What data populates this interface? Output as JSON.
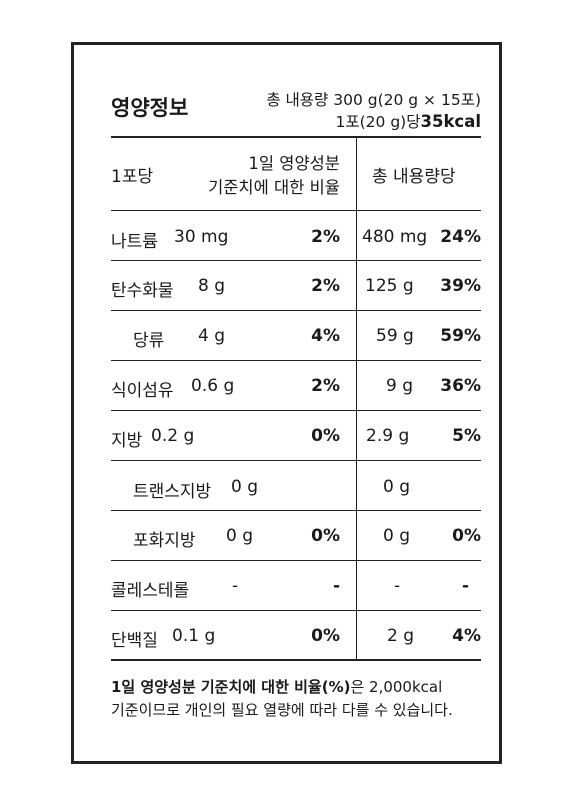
{
  "header": {
    "title": "영양정보",
    "total_content": "총 내용량 300 g(20 g × 15포)",
    "per_serving_prefix": "1포(20 g)당",
    "kcal": "35kcal"
  },
  "table_header": {
    "per_serving": "1포당",
    "daily_value_line1": "1일 영양성분",
    "daily_value_line2": "기준치에 대한 비율",
    "total": "총 내용량당"
  },
  "rows": [
    {
      "name": "나트륨",
      "amount": "30 mg",
      "pct": "2%",
      "total_amount": "480 mg",
      "total_pct": "24%"
    },
    {
      "name": "탄수화물",
      "amount": "8 g",
      "pct": "2%",
      "total_amount": "125 g",
      "total_pct": "39%"
    },
    {
      "name": "당류",
      "amount": "4 g",
      "pct": "4%",
      "total_amount": "59 g",
      "total_pct": "59%"
    },
    {
      "name": "식이섬유",
      "amount": "0.6 g",
      "pct": "2%",
      "total_amount": "9 g",
      "total_pct": "36%"
    },
    {
      "name": "지방",
      "amount": "0.2 g",
      "pct": "0%",
      "total_amount": "2.9 g",
      "total_pct": "5%"
    },
    {
      "name": "트랜스지방",
      "amount": "0 g",
      "pct": "",
      "total_amount": "0 g",
      "total_pct": ""
    },
    {
      "name": "포화지방",
      "amount": "0 g",
      "pct": "0%",
      "total_amount": "0 g",
      "total_pct": "0%"
    },
    {
      "name": "콜레스테롤",
      "amount": "-",
      "pct": "-",
      "total_amount": "-",
      "total_pct": "-"
    },
    {
      "name": "단백질",
      "amount": "0.1 g",
      "pct": "0%",
      "total_amount": "2 g",
      "total_pct": "4%"
    }
  ],
  "footnote": {
    "line1_bold": "1일 영양성분 기준치에 대한 비율(%)",
    "line1_rest": "은 2,000kcal",
    "line2": "기준이므로 개인의 필요 열량에 따라 다를 수 있습니다."
  }
}
